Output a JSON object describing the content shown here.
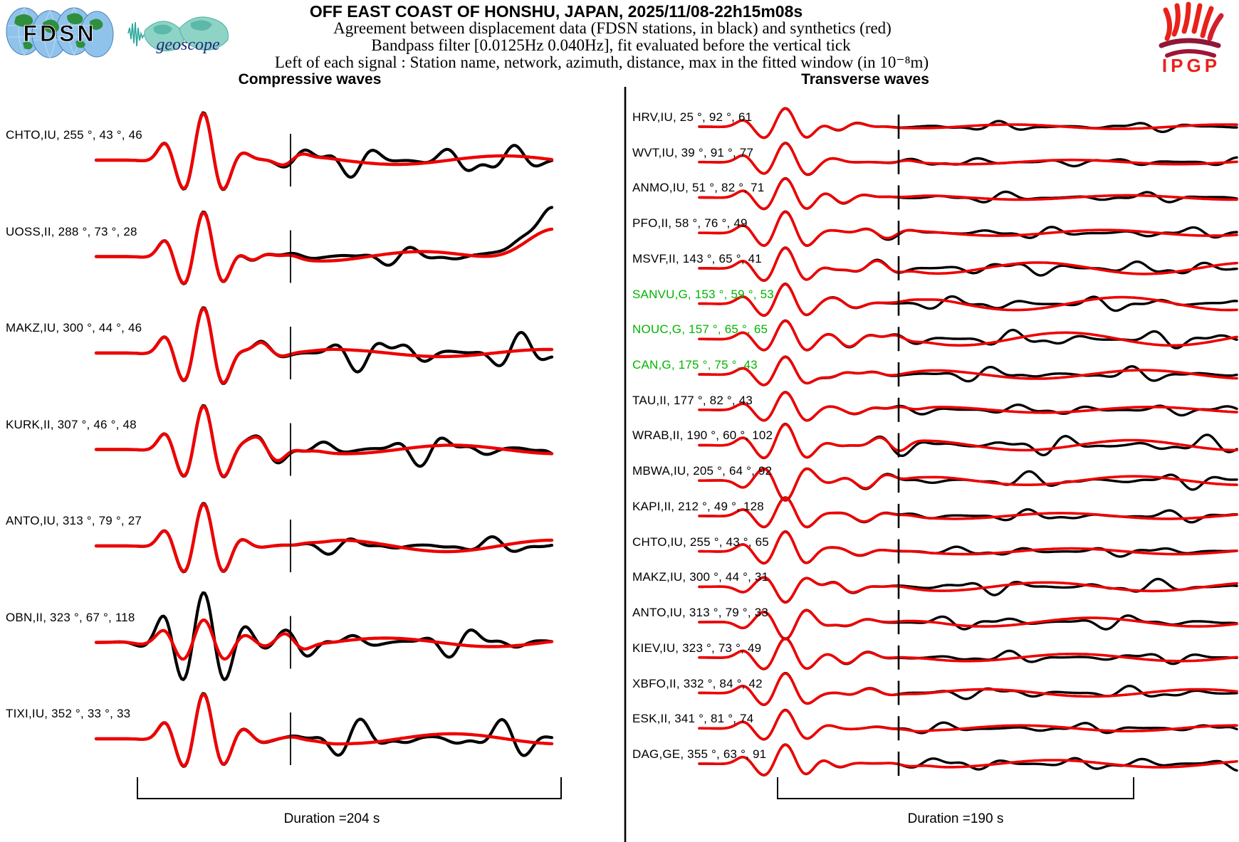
{
  "header": {
    "title": "OFF EAST COAST OF HONSHU, JAPAN, 2025/11/08-22h15m08s",
    "subtitle1": "Agreement between displacement data (FDSN stations, in black) and synthetics (red)",
    "subtitle2": "Bandpass filter [0.0125Hz 0.040Hz], fit evaluated before the vertical tick",
    "subtitle3": "Left of each signal : Station name, network, azimuth, distance, max in the fitted window (in 10⁻⁸m)"
  },
  "logos": {
    "fdsn": "FDSN",
    "geoscope": "geoscope",
    "ipgp": "IPGP"
  },
  "chart_data": {
    "type": "line",
    "description": "Seismogram comparison plot: observed displacement data (black) versus synthetic seismograms (red) for each station. Vertical tick marks the end of the fit window.",
    "label_format": "Station name, network, azimuth (°), distance (°), max in the fitted window (10⁻⁸ m)",
    "colors": {
      "data": "#000000",
      "synthetic": "#ee0000",
      "geoscope_label": "#00b400",
      "label": "#000000"
    },
    "panels": [
      {
        "heading": "Compressive waves",
        "duration_label": "Duration =204 s",
        "duration_seconds": 204,
        "stations": [
          {
            "name": "CHTO",
            "net": "IU",
            "az": 255,
            "dist": 43,
            "max": 46,
            "green": false,
            "wave": {
              "amp": 67,
              "coda": 30,
              "rcoda": 6,
              "seed": 11
            }
          },
          {
            "name": "UOSS",
            "net": "II",
            "az": 288,
            "dist": 73,
            "max": 28,
            "green": false,
            "wave": {
              "amp": 63,
              "coda": 15,
              "rcoda": 7,
              "seed": 22,
              "end": 55
            }
          },
          {
            "name": "MAKZ",
            "net": "IU",
            "az": 300,
            "dist": 44,
            "max": 46,
            "green": false,
            "wave": {
              "amp": 64,
              "coda": 32,
              "rcoda": 5,
              "seed": 33
            }
          },
          {
            "name": "KURK",
            "net": "II",
            "az": 307,
            "dist": 46,
            "max": 48,
            "green": false,
            "wave": {
              "amp": 62,
              "coda": 26,
              "rcoda": 6,
              "seed": 44
            }
          },
          {
            "name": "ANTO",
            "net": "IU",
            "az": 313,
            "dist": 79,
            "max": 27,
            "green": false,
            "wave": {
              "amp": 60,
              "coda": 13,
              "rcoda": 8,
              "seed": 55
            }
          },
          {
            "name": "OBN",
            "net": "II",
            "az": 323,
            "dist": 67,
            "max": 118,
            "green": false,
            "wave": {
              "amp": 70,
              "coda": 24,
              "rcoda": 6,
              "seed": 66,
              "rs": 0.45,
              "ws": 1.35
            }
          },
          {
            "name": "TIXI",
            "net": "IU",
            "az": 352,
            "dist": 33,
            "max": 33,
            "green": false,
            "wave": {
              "amp": 64,
              "coda": 30,
              "rcoda": 7,
              "seed": 77
            }
          }
        ]
      },
      {
        "heading": "Transverse waves",
        "duration_label": "Duration =190 s",
        "duration_seconds": 190,
        "stations": [
          {
            "name": "HRV",
            "net": "IU",
            "az": 25,
            "dist": 92,
            "max": 61,
            "green": false,
            "wave": {
              "amp": 26,
              "coda": 8,
              "rcoda": 3,
              "seed": 101
            }
          },
          {
            "name": "WVT",
            "net": "IU",
            "az": 39,
            "dist": 91,
            "max": 77,
            "green": false,
            "wave": {
              "amp": 27,
              "coda": 8,
              "rcoda": 3,
              "seed": 102
            }
          },
          {
            "name": "ANMO",
            "net": "IU",
            "az": 51,
            "dist": 82,
            "max": 71,
            "green": false,
            "wave": {
              "amp": 27,
              "coda": 9,
              "rcoda": 3,
              "seed": 103
            }
          },
          {
            "name": "PFO",
            "net": "II",
            "az": 58,
            "dist": 76,
            "max": 49,
            "green": false,
            "wave": {
              "amp": 30,
              "coda": 10,
              "rcoda": 4,
              "seed": 104
            }
          },
          {
            "name": "MSVF",
            "net": "II",
            "az": 143,
            "dist": 65,
            "max": 41,
            "green": false,
            "wave": {
              "amp": 29,
              "coda": 14,
              "rcoda": 8,
              "seed": 105
            }
          },
          {
            "name": "SANVU",
            "net": "G",
            "az": 153,
            "dist": 59,
            "max": 53,
            "green": true,
            "wave": {
              "amp": 28,
              "coda": 13,
              "rcoda": 9,
              "seed": 106
            }
          },
          {
            "name": "NOUC",
            "net": "G",
            "az": 157,
            "dist": 65,
            "max": 65,
            "green": true,
            "wave": {
              "amp": 26,
              "coda": 15,
              "rcoda": 9,
              "seed": 107
            }
          },
          {
            "name": "CAN",
            "net": "G",
            "az": 175,
            "dist": 75,
            "max": 43,
            "green": true,
            "wave": {
              "amp": 25,
              "coda": 12,
              "rcoda": 6,
              "seed": 108
            }
          },
          {
            "name": "TAU",
            "net": "II",
            "az": 177,
            "dist": 82,
            "max": 43,
            "green": false,
            "wave": {
              "amp": 25,
              "coda": 10,
              "rcoda": 4,
              "seed": 109
            }
          },
          {
            "name": "WRAB",
            "net": "II",
            "az": 190,
            "dist": 60,
            "max": 102,
            "green": false,
            "wave": {
              "amp": 30,
              "coda": 16,
              "rcoda": 7,
              "seed": 110
            }
          },
          {
            "name": "MBWA",
            "net": "IU",
            "az": 205,
            "dist": 64,
            "max": 92,
            "green": false,
            "wave": {
              "amp": 28,
              "coda": 13,
              "rcoda": 6,
              "seed": 111,
              "pol": -1
            }
          },
          {
            "name": "KAPI",
            "net": "II",
            "az": 212,
            "dist": 49,
            "max": 128,
            "green": false,
            "wave": {
              "amp": 26,
              "coda": 10,
              "rcoda": 4,
              "seed": 112
            }
          },
          {
            "name": "CHTO",
            "net": "IU",
            "az": 255,
            "dist": 43,
            "max": 65,
            "green": false,
            "wave": {
              "amp": 28,
              "coda": 9,
              "rcoda": 4,
              "seed": 113
            }
          },
          {
            "name": "MAKZ",
            "net": "IU",
            "az": 300,
            "dist": 44,
            "max": 31,
            "green": false,
            "wave": {
              "amp": 22,
              "coda": 12,
              "rcoda": 6,
              "seed": 114,
              "pol": -1
            }
          },
          {
            "name": "ANTO",
            "net": "IU",
            "az": 313,
            "dist": 79,
            "max": 33,
            "green": false,
            "wave": {
              "amp": 24,
              "coda": 12,
              "rcoda": 6,
              "seed": 115,
              "pol": -1
            }
          },
          {
            "name": "KIEV",
            "net": "IU",
            "az": 323,
            "dist": 73,
            "max": 49,
            "green": false,
            "wave": {
              "amp": 27,
              "coda": 10,
              "rcoda": 5,
              "seed": 116
            }
          },
          {
            "name": "XBFO",
            "net": "II",
            "az": 332,
            "dist": 84,
            "max": 42,
            "green": false,
            "wave": {
              "amp": 28,
              "coda": 11,
              "rcoda": 5,
              "seed": 117
            }
          },
          {
            "name": "ESK",
            "net": "II",
            "az": 341,
            "dist": 81,
            "max": 74,
            "green": false,
            "wave": {
              "amp": 26,
              "coda": 9,
              "rcoda": 4,
              "seed": 118
            }
          },
          {
            "name": "DAG",
            "net": "GE",
            "az": 355,
            "dist": 63,
            "max": 91,
            "green": false,
            "wave": {
              "amp": 27,
              "coda": 12,
              "rcoda": 5,
              "seed": 119
            }
          }
        ]
      }
    ]
  }
}
